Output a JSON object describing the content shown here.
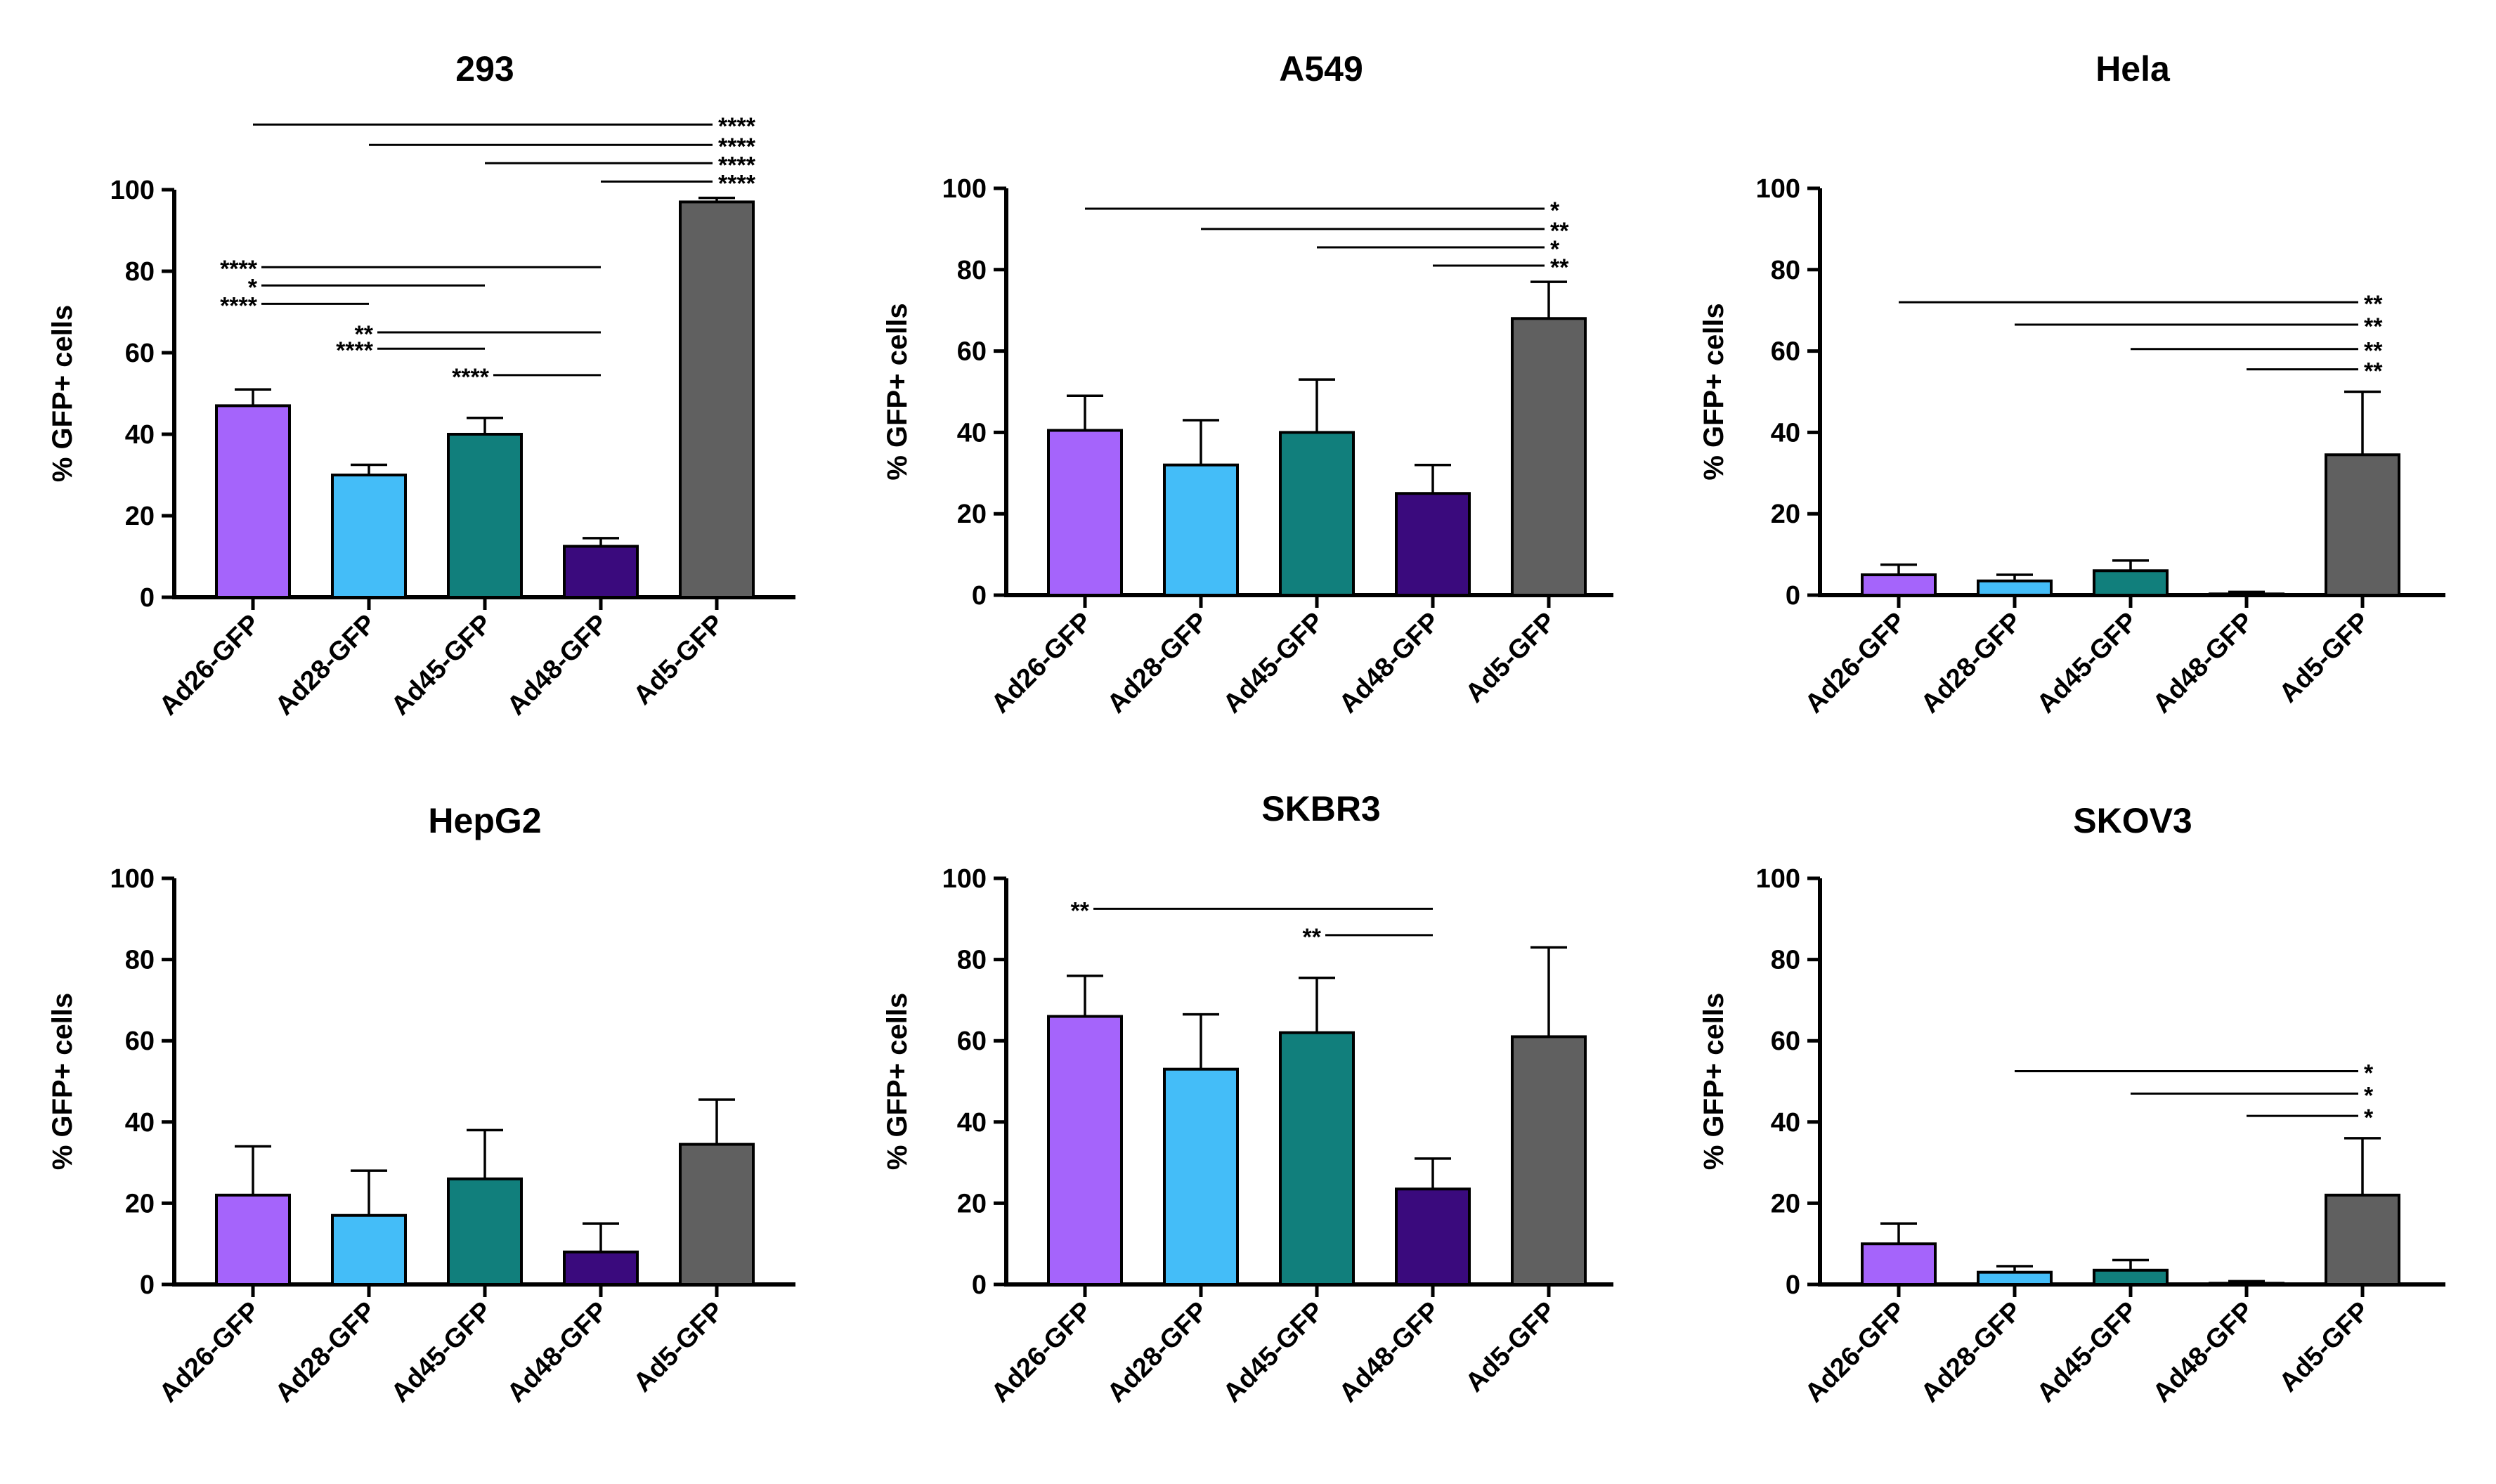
{
  "colors": [
    "#a564fb",
    "#44bdf8",
    "#117f7c",
    "#3a0a7d",
    "#606060"
  ],
  "chart_data": [
    {
      "type": "bar",
      "title": "293",
      "ylabel": "% GFP+ cells",
      "ylim": [
        0,
        100
      ],
      "yticks": [
        "0",
        "20",
        "40",
        "60",
        "80",
        "100"
      ],
      "categories": [
        "Ad26-GFP",
        "Ad28-GFP",
        "Ad45-GFP",
        "Ad48-GFP",
        "Ad5-GFP"
      ],
      "values": [
        47,
        30,
        40,
        12.5,
        97
      ],
      "errors": [
        4,
        2.5,
        4,
        2,
        1
      ],
      "comparisons": [
        {
          "from": 0,
          "to": 4,
          "label": "****",
          "y": 116,
          "side": "right"
        },
        {
          "from": 1,
          "to": 4,
          "label": "****",
          "y": 111,
          "side": "right"
        },
        {
          "from": 2,
          "to": 4,
          "label": "****",
          "y": 106.5,
          "side": "right"
        },
        {
          "from": 3,
          "to": 4,
          "label": "****",
          "y": 102,
          "side": "right"
        },
        {
          "from": 0,
          "to": 3,
          "label": "****",
          "y": 81,
          "side": "left"
        },
        {
          "from": 0,
          "to": 2,
          "label": "*",
          "y": 76.5,
          "side": "left"
        },
        {
          "from": 0,
          "to": 1,
          "label": "****",
          "y": 72,
          "side": "left"
        },
        {
          "from": 1,
          "to": 3,
          "label": "**",
          "y": 65,
          "side": "left"
        },
        {
          "from": 1,
          "to": 2,
          "label": "****",
          "y": 61,
          "side": "left"
        },
        {
          "from": 2,
          "to": 3,
          "label": "****",
          "y": 54.5,
          "side": "left"
        }
      ]
    },
    {
      "type": "bar",
      "title": "A549",
      "ylabel": "% GFP+ cells",
      "ylim": [
        0,
        100
      ],
      "yticks": [
        "0",
        "20",
        "40",
        "60",
        "80",
        "100"
      ],
      "categories": [
        "Ad26-GFP",
        "Ad28-GFP",
        "Ad45-GFP",
        "Ad48-GFP",
        "Ad5-GFP"
      ],
      "values": [
        40.5,
        32,
        40,
        25,
        68
      ],
      "errors": [
        8.5,
        11,
        13,
        7,
        9
      ],
      "comparisons": [
        {
          "from": 0,
          "to": 4,
          "label": "*",
          "y": 95,
          "side": "right"
        },
        {
          "from": 1,
          "to": 4,
          "label": "**",
          "y": 90,
          "side": "right"
        },
        {
          "from": 2,
          "to": 4,
          "label": "*",
          "y": 85.5,
          "side": "right"
        },
        {
          "from": 3,
          "to": 4,
          "label": "**",
          "y": 81,
          "side": "right"
        }
      ]
    },
    {
      "type": "bar",
      "title": "Hela",
      "ylabel": "% GFP+ cells",
      "ylim": [
        0,
        100
      ],
      "yticks": [
        "0",
        "20",
        "40",
        "60",
        "80",
        "100"
      ],
      "categories": [
        "Ad26-GFP",
        "Ad28-GFP",
        "Ad45-GFP",
        "Ad48-GFP",
        "Ad5-GFP"
      ],
      "values": [
        5,
        3.5,
        6,
        0.3,
        34.5
      ],
      "errors": [
        2.5,
        1.5,
        2.5,
        0.5,
        15.5
      ],
      "comparisons": [
        {
          "from": 0,
          "to": 4,
          "label": "**",
          "y": 72,
          "side": "right"
        },
        {
          "from": 1,
          "to": 4,
          "label": "**",
          "y": 66.5,
          "side": "right"
        },
        {
          "from": 2,
          "to": 4,
          "label": "**",
          "y": 60.5,
          "side": "right"
        },
        {
          "from": 3,
          "to": 4,
          "label": "**",
          "y": 55.5,
          "side": "right"
        }
      ]
    },
    {
      "type": "bar",
      "title": "HepG2",
      "ylabel": "% GFP+ cells",
      "ylim": [
        0,
        100
      ],
      "yticks": [
        "0",
        "20",
        "40",
        "60",
        "80",
        "100"
      ],
      "categories": [
        "Ad26-GFP",
        "Ad28-GFP",
        "Ad45-GFP",
        "Ad48-GFP",
        "Ad5-GFP"
      ],
      "values": [
        22,
        17,
        26,
        8,
        34.5
      ],
      "errors": [
        12,
        11,
        12,
        7,
        11
      ],
      "comparisons": []
    },
    {
      "type": "bar",
      "title": "SKBR3",
      "ylabel": "% GFP+ cells",
      "ylim": [
        0,
        100
      ],
      "yticks": [
        "0",
        "20",
        "40",
        "60",
        "80",
        "100"
      ],
      "categories": [
        "Ad26-GFP",
        "Ad28-GFP",
        "Ad45-GFP",
        "Ad48-GFP",
        "Ad5-GFP"
      ],
      "values": [
        66,
        53,
        62,
        23.5,
        61
      ],
      "errors": [
        10,
        13.5,
        13.5,
        7.5,
        22
      ],
      "comparisons": [
        {
          "from": 0,
          "to": 3,
          "label": "**",
          "y": 92.5,
          "side": "left"
        },
        {
          "from": 2,
          "to": 3,
          "label": "**",
          "y": 86,
          "side": "left"
        }
      ]
    },
    {
      "type": "bar",
      "title": "SKOV3",
      "ylabel": "% GFP+ cells",
      "ylim": [
        0,
        100
      ],
      "yticks": [
        "0",
        "20",
        "40",
        "60",
        "80",
        "100"
      ],
      "categories": [
        "Ad26-GFP",
        "Ad28-GFP",
        "Ad45-GFP",
        "Ad48-GFP",
        "Ad5-GFP"
      ],
      "values": [
        10,
        3,
        3.5,
        0.3,
        22
      ],
      "errors": [
        5,
        1.5,
        2.5,
        0.5,
        14
      ],
      "comparisons": [
        {
          "from": 1,
          "to": 4,
          "label": "*",
          "y": 52.5,
          "side": "right"
        },
        {
          "from": 2,
          "to": 4,
          "label": "*",
          "y": 47,
          "side": "right"
        },
        {
          "from": 3,
          "to": 4,
          "label": "*",
          "y": 41.5,
          "side": "right"
        }
      ]
    }
  ]
}
